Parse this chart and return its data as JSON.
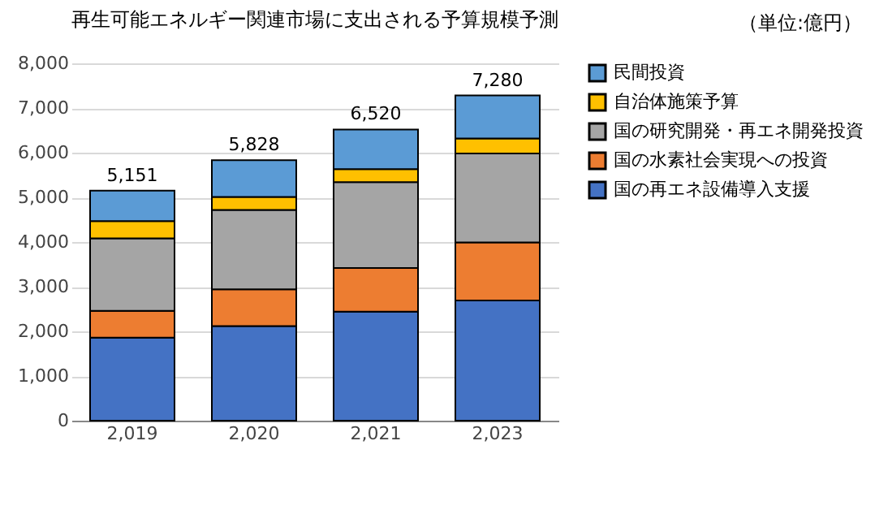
{
  "chart_data": {
    "type": "bar",
    "title": "再生可能エネルギー関連市場に支出される予算規模予測",
    "annotations": [
      "（単位:億円）"
    ],
    "categories": [
      "2,019",
      "2,020",
      "2,021",
      "2,023"
    ],
    "stacked": true,
    "series": [
      {
        "name": "国の再エネ設備導入支援",
        "color": "#4472c4",
        "values": [
          1860,
          2120,
          2440,
          2690
        ]
      },
      {
        "name": "国の水素社会実現への投資",
        "color": "#ed7d31",
        "values": [
          600,
          820,
          980,
          1300
        ]
      },
      {
        "name": "国の研究開発・再エネ開発投資",
        "color": "#a5a5a5",
        "values": [
          1620,
          1780,
          1920,
          1990
        ]
      },
      {
        "name": "自治体施策予算",
        "color": "#ffc000",
        "values": [
          390,
          290,
          290,
          340
        ]
      },
      {
        "name": "民間投資",
        "color": "#5b9bd5",
        "values": [
          680,
          820,
          890,
          960
        ]
      }
    ],
    "totals": [
      "5,151",
      "5,828",
      "6,520",
      "7,280"
    ],
    "ylim": [
      0,
      8000
    ],
    "yticks": [
      0,
      {
        "value": 1000,
        "label": "1,000"
      },
      {
        "value": 2000,
        "label": "2,000"
      },
      {
        "value": 3000,
        "label": "3,000"
      },
      {
        "value": 4000,
        "label": "4,000"
      },
      {
        "value": 5000,
        "label": "5,000"
      },
      {
        "value": 6000,
        "label": "6,000"
      },
      {
        "value": 7000,
        "label": "7,000"
      },
      {
        "value": 8000,
        "label": "8,000"
      }
    ],
    "grid": "y",
    "legend": "right"
  }
}
